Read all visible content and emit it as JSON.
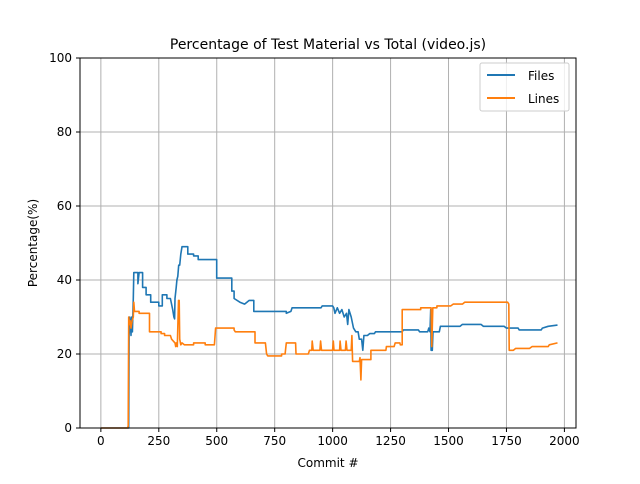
{
  "chart_data": {
    "type": "line",
    "title": "Percentage of Test Material vs Total (video.js)",
    "xlabel": "Commit #",
    "ylabel": "Percentage(%)",
    "xlim": [
      -90,
      2050
    ],
    "ylim": [
      0,
      100
    ],
    "xticks": [
      0,
      250,
      500,
      750,
      1000,
      1250,
      1500,
      1750,
      2000
    ],
    "yticks": [
      0,
      20,
      40,
      60,
      80,
      100
    ],
    "grid": true,
    "legend_position": "top-right",
    "series": [
      {
        "name": "Files",
        "color": "#1f77b4",
        "points": [
          [
            0,
            0
          ],
          [
            120,
            0
          ],
          [
            122,
            25
          ],
          [
            125,
            30
          ],
          [
            128,
            28
          ],
          [
            130,
            25
          ],
          [
            133,
            30
          ],
          [
            136,
            26
          ],
          [
            140,
            35
          ],
          [
            142,
            42
          ],
          [
            160,
            42
          ],
          [
            160,
            39
          ],
          [
            165,
            42
          ],
          [
            180,
            42
          ],
          [
            180,
            38
          ],
          [
            195,
            38
          ],
          [
            195,
            36
          ],
          [
            215,
            36
          ],
          [
            215,
            34
          ],
          [
            250,
            34
          ],
          [
            250,
            33
          ],
          [
            265,
            33
          ],
          [
            265,
            36
          ],
          [
            285,
            36
          ],
          [
            285,
            35
          ],
          [
            300,
            35
          ],
          [
            310,
            32
          ],
          [
            315,
            30
          ],
          [
            318,
            29.5
          ],
          [
            320,
            35
          ],
          [
            325,
            38
          ],
          [
            328,
            40
          ],
          [
            332,
            41
          ],
          [
            336,
            44
          ],
          [
            340,
            44
          ],
          [
            345,
            47
          ],
          [
            350,
            49
          ],
          [
            375,
            49
          ],
          [
            375,
            47
          ],
          [
            400,
            47
          ],
          [
            400,
            46.5
          ],
          [
            420,
            46.5
          ],
          [
            420,
            45.5
          ],
          [
            500,
            45.5
          ],
          [
            500,
            40.5
          ],
          [
            565,
            40.5
          ],
          [
            565,
            37
          ],
          [
            575,
            37
          ],
          [
            575,
            35
          ],
          [
            600,
            34
          ],
          [
            620,
            33.5
          ],
          [
            640,
            34.5
          ],
          [
            660,
            34.5
          ],
          [
            660,
            31.5
          ],
          [
            800,
            31.5
          ],
          [
            800,
            31
          ],
          [
            820,
            31.5
          ],
          [
            825,
            32.5
          ],
          [
            950,
            32.5
          ],
          [
            955,
            33
          ],
          [
            1000,
            33
          ],
          [
            1005,
            32.5
          ],
          [
            1010,
            31
          ],
          [
            1020,
            32.5
          ],
          [
            1030,
            31
          ],
          [
            1040,
            32
          ],
          [
            1050,
            30
          ],
          [
            1060,
            31
          ],
          [
            1065,
            28
          ],
          [
            1070,
            32
          ],
          [
            1080,
            30
          ],
          [
            1090,
            27
          ],
          [
            1100,
            26
          ],
          [
            1110,
            26
          ],
          [
            1115,
            24
          ],
          [
            1125,
            24
          ],
          [
            1130,
            21
          ],
          [
            1135,
            25
          ],
          [
            1150,
            25
          ],
          [
            1160,
            25.5
          ],
          [
            1180,
            25.5
          ],
          [
            1185,
            26
          ],
          [
            1300,
            26
          ],
          [
            1305,
            26.5
          ],
          [
            1370,
            26.5
          ],
          [
            1375,
            26
          ],
          [
            1410,
            26
          ],
          [
            1415,
            27
          ],
          [
            1420,
            26
          ],
          [
            1423,
            32
          ],
          [
            1425,
            21
          ],
          [
            1430,
            21
          ],
          [
            1433,
            26
          ],
          [
            1460,
            26
          ],
          [
            1465,
            27.5
          ],
          [
            1550,
            27.5
          ],
          [
            1560,
            28
          ],
          [
            1640,
            28
          ],
          [
            1650,
            27.5
          ],
          [
            1740,
            27.5
          ],
          [
            1750,
            27
          ],
          [
            1800,
            27
          ],
          [
            1805,
            26.5
          ],
          [
            1900,
            26.5
          ],
          [
            1905,
            27
          ],
          [
            1930,
            27.5
          ],
          [
            1970,
            27.8
          ]
        ]
      },
      {
        "name": "Lines",
        "color": "#ff7f0e",
        "points": [
          [
            0,
            0
          ],
          [
            115,
            0
          ],
          [
            118,
            0.5
          ],
          [
            120,
            30
          ],
          [
            123,
            28
          ],
          [
            126,
            29
          ],
          [
            130,
            27
          ],
          [
            135,
            29
          ],
          [
            140,
            30
          ],
          [
            142,
            34
          ],
          [
            145,
            31.5
          ],
          [
            165,
            31.5
          ],
          [
            165,
            31
          ],
          [
            210,
            31
          ],
          [
            210,
            26
          ],
          [
            260,
            26
          ],
          [
            260,
            25.5
          ],
          [
            275,
            25.5
          ],
          [
            275,
            25
          ],
          [
            300,
            25
          ],
          [
            305,
            24
          ],
          [
            320,
            23
          ],
          [
            323,
            22
          ],
          [
            326,
            23
          ],
          [
            330,
            22
          ],
          [
            335,
            34.5
          ],
          [
            338,
            34.5
          ],
          [
            340,
            24
          ],
          [
            345,
            22.5
          ],
          [
            350,
            23
          ],
          [
            360,
            22.5
          ],
          [
            400,
            22.5
          ],
          [
            400,
            23
          ],
          [
            450,
            23
          ],
          [
            450,
            22.5
          ],
          [
            490,
            22.5
          ],
          [
            495,
            27
          ],
          [
            575,
            27
          ],
          [
            575,
            26.5
          ],
          [
            580,
            26
          ],
          [
            665,
            26
          ],
          [
            665,
            23
          ],
          [
            710,
            23
          ],
          [
            715,
            20
          ],
          [
            720,
            19.5
          ],
          [
            780,
            19.5
          ],
          [
            780,
            20
          ],
          [
            795,
            20
          ],
          [
            800,
            23
          ],
          [
            840,
            23
          ],
          [
            842,
            20
          ],
          [
            895,
            20
          ],
          [
            900,
            21
          ],
          [
            910,
            21
          ],
          [
            912,
            23.5
          ],
          [
            916,
            21
          ],
          [
            945,
            21
          ],
          [
            948,
            23.5
          ],
          [
            952,
            21
          ],
          [
            1000,
            21
          ],
          [
            1003,
            23.5
          ],
          [
            1006,
            21
          ],
          [
            1030,
            21
          ],
          [
            1032,
            23.5
          ],
          [
            1036,
            21
          ],
          [
            1055,
            21
          ],
          [
            1058,
            23.5
          ],
          [
            1062,
            21
          ],
          [
            1080,
            21
          ],
          [
            1083,
            25
          ],
          [
            1086,
            18
          ],
          [
            1115,
            18
          ],
          [
            1118,
            19
          ],
          [
            1122,
            13
          ],
          [
            1125,
            18.5
          ],
          [
            1150,
            18.5
          ],
          [
            1165,
            18.5
          ],
          [
            1165,
            21
          ],
          [
            1230,
            21
          ],
          [
            1232,
            22
          ],
          [
            1265,
            22
          ],
          [
            1270,
            23
          ],
          [
            1290,
            23
          ],
          [
            1292,
            22.5
          ],
          [
            1300,
            22.5
          ],
          [
            1300,
            32
          ],
          [
            1380,
            32
          ],
          [
            1380,
            32.5
          ],
          [
            1425,
            32.5
          ],
          [
            1428,
            22
          ],
          [
            1432,
            32.5
          ],
          [
            1450,
            32.5
          ],
          [
            1450,
            33
          ],
          [
            1510,
            33
          ],
          [
            1520,
            33.5
          ],
          [
            1560,
            33.5
          ],
          [
            1570,
            34
          ],
          [
            1755,
            34
          ],
          [
            1760,
            33.5
          ],
          [
            1762,
            21
          ],
          [
            1780,
            21
          ],
          [
            1790,
            21.5
          ],
          [
            1850,
            21.5
          ],
          [
            1860,
            22
          ],
          [
            1930,
            22
          ],
          [
            1935,
            22.5
          ],
          [
            1970,
            23
          ]
        ]
      }
    ]
  }
}
